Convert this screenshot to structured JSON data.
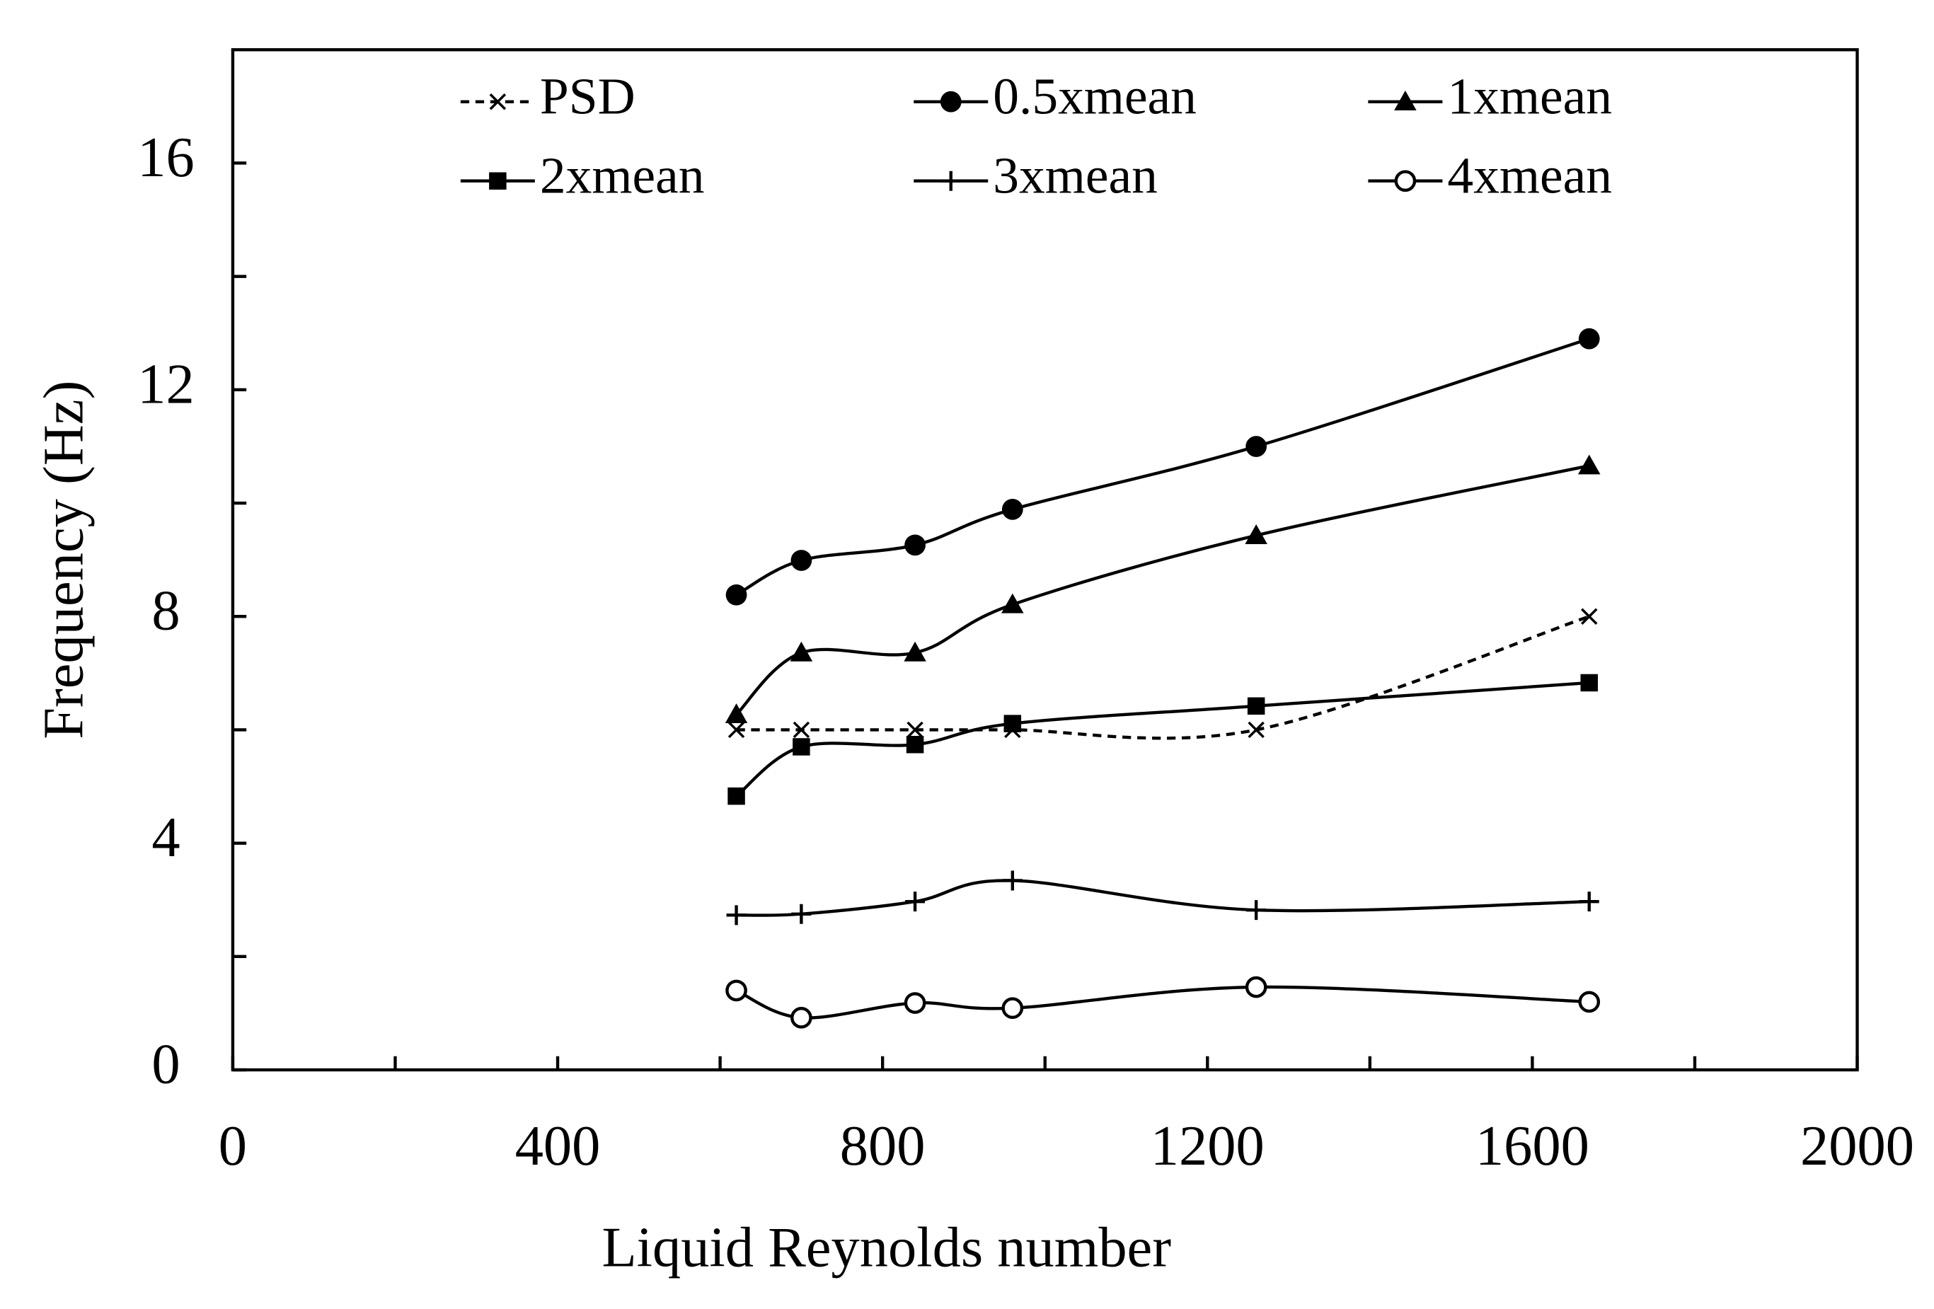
{
  "chart_data": {
    "type": "line",
    "xlabel": "Liquid Reynolds number",
    "ylabel": "Frequency (Hz)",
    "x": [
      620,
      700,
      840,
      960,
      1260,
      1670
    ],
    "xlim": [
      0,
      2000
    ],
    "xticks": [
      0,
      400,
      800,
      1200,
      1600,
      2000
    ],
    "xminor_ticks": [
      200,
      600,
      1000,
      1400,
      1800
    ],
    "ylim": [
      0,
      18
    ],
    "yticks": [
      0,
      4,
      8,
      12,
      16
    ],
    "yminor_ticks": [
      2,
      6,
      10,
      14
    ],
    "smooth": true,
    "series": [
      {
        "name": "PSD",
        "color": "#000000",
        "marker": "x",
        "dashed": true,
        "values": [
          6.0,
          6.0,
          6.0,
          6.0,
          6.0,
          8.0
        ]
      },
      {
        "name": "0.5xmean",
        "color": "#000000",
        "marker": "circle",
        "values": [
          8.38,
          8.99,
          9.26,
          9.89,
          11.0,
          12.9
        ]
      },
      {
        "name": "1xmean",
        "color": "#000000",
        "marker": "triangle",
        "values": [
          6.27,
          7.36,
          7.36,
          8.21,
          9.43,
          10.66
        ]
      },
      {
        "name": "2xmean",
        "color": "#000000",
        "marker": "square",
        "values": [
          4.83,
          5.7,
          5.74,
          6.11,
          6.42,
          6.83
        ]
      },
      {
        "name": "3xmean",
        "color": "#000000",
        "marker": "plus",
        "values": [
          2.73,
          2.75,
          2.97,
          3.34,
          2.82,
          2.97
        ]
      },
      {
        "name": "4xmean",
        "color": "#000000",
        "marker": "open-circle",
        "values": [
          1.4,
          0.92,
          1.18,
          1.09,
          1.46,
          1.2
        ]
      }
    ]
  }
}
